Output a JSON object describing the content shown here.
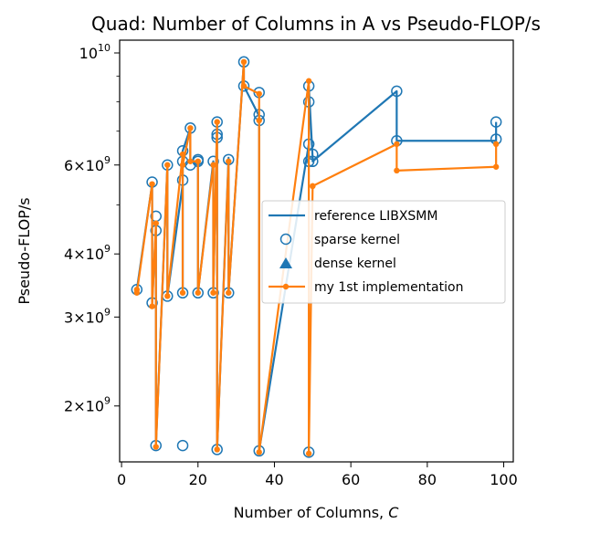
{
  "chart_data": {
    "type": "line",
    "title": "Quad: Number of Columns in A vs Pseudo-FLOP/s",
    "xlabel": "Number of Columns, C",
    "xlabel_main": "Number of Columns, ",
    "xlabel_var": "C",
    "ylabel": "Pseudo-FLOP/s",
    "xlim": [
      -0.5,
      102.5
    ],
    "ylim": [
      1550000000.0,
      10600000000.0
    ],
    "yscale": "log",
    "x_ticks": [
      0,
      20,
      40,
      60,
      80,
      100
    ],
    "x_tick_labels": [
      "0",
      "20",
      "40",
      "60",
      "80",
      "100"
    ],
    "y_ticks": [
      {
        "value": 10000000000.0,
        "base": "10",
        "exp": "10",
        "coef": ""
      },
      {
        "value": 6000000000.0,
        "base": "10",
        "exp": "9",
        "coef": "6"
      },
      {
        "value": 4000000000.0,
        "base": "10",
        "exp": "9",
        "coef": "4"
      },
      {
        "value": 3000000000.0,
        "base": "10",
        "exp": "9",
        "coef": "3"
      },
      {
        "value": 2000000000.0,
        "base": "10",
        "exp": "9",
        "coef": "2"
      }
    ],
    "y_minor_ticks": [
      5000000000.0,
      7000000000.0,
      8000000000.0,
      9000000000.0
    ],
    "legend_position": "center-right",
    "series": [
      {
        "name": "reference LIBXSMM",
        "color": "#1f77b4",
        "style": "line",
        "x": [
          4,
          4,
          8,
          8,
          9,
          9,
          12,
          12,
          16,
          16,
          16,
          18,
          18,
          20,
          20,
          24,
          24,
          25,
          25,
          28,
          28,
          32,
          32,
          36,
          36,
          49,
          49,
          50,
          50,
          72,
          72,
          98,
          98
        ],
        "values": [
          3400000000.0,
          3400000000.0,
          5500000000.0,
          3200000000.0,
          4500000000.0,
          1670000000.0,
          6000000000.0,
          3300000000.0,
          5500000000.0,
          3350000000.0,
          6400000000.0,
          7100000000.0,
          6100000000.0,
          6100000000.0,
          3350000000.0,
          6100000000.0,
          3350000000.0,
          7300000000.0,
          1640000000.0,
          6200000000.0,
          3350000000.0,
          9600000000.0,
          8600000000.0,
          7500000000.0,
          1630000000.0,
          6600000000.0,
          8600000000.0,
          6200000000.0,
          6100000000.0,
          8400000000.0,
          6700000000.0,
          6700000000.0,
          7300000000.0
        ]
      },
      {
        "name": "sparse kernel",
        "color": "#1f77b4",
        "style": "open-circle",
        "x": [
          4,
          8,
          8,
          9,
          9,
          9,
          12,
          12,
          16,
          16,
          16,
          16,
          16,
          18,
          18,
          20,
          20,
          20,
          24,
          24,
          25,
          25,
          25,
          25,
          28,
          28,
          32,
          32,
          36,
          36,
          36,
          36,
          49,
          49,
          49,
          49,
          49,
          50,
          50,
          72,
          72,
          98,
          98
        ],
        "values": [
          3400000000.0,
          5550000000.0,
          3200000000.0,
          4750000000.0,
          4450000000.0,
          1670000000.0,
          6000000000.0,
          3300000000.0,
          6400000000.0,
          6100000000.0,
          5600000000.0,
          3350000000.0,
          1670000000.0,
          7100000000.0,
          6000000000.0,
          6150000000.0,
          6100000000.0,
          3350000000.0,
          6100000000.0,
          3350000000.0,
          7300000000.0,
          6900000000.0,
          6800000000.0,
          1640000000.0,
          6150000000.0,
          3350000000.0,
          9600000000.0,
          8600000000.0,
          8350000000.0,
          7550000000.0,
          7350000000.0,
          1630000000.0,
          8600000000.0,
          8000000000.0,
          6600000000.0,
          6100000000.0,
          1620000000.0,
          6300000000.0,
          6100000000.0,
          8400000000.0,
          6700000000.0,
          7300000000.0,
          6750000000.0
        ]
      },
      {
        "name": "dense kernel",
        "color": "#1f77b4",
        "style": "triangle",
        "x": [],
        "values": []
      },
      {
        "name": "my 1st implementation",
        "color": "#ff7f0e",
        "style": "line-dot",
        "x": [
          4,
          4,
          8,
          8,
          9,
          9,
          12,
          12,
          16,
          16,
          16,
          18,
          18,
          20,
          20,
          24,
          24,
          25,
          25,
          28,
          28,
          32,
          32,
          36,
          36,
          36,
          49,
          49,
          50,
          50,
          72,
          72,
          98,
          98
        ],
        "values": [
          3400000000.0,
          3350000000.0,
          5500000000.0,
          3150000000.0,
          4600000000.0,
          1660000000.0,
          6000000000.0,
          3300000000.0,
          6300000000.0,
          3350000000.0,
          6000000000.0,
          7100000000.0,
          6100000000.0,
          6100000000.0,
          3350000000.0,
          6000000000.0,
          3350000000.0,
          7300000000.0,
          1640000000.0,
          6100000000.0,
          3350000000.0,
          9600000000.0,
          8600000000.0,
          8300000000.0,
          7350000000.0,
          1620000000.0,
          8800000000.0,
          1610000000.0,
          5450000000.0,
          5450000000.0,
          6600000000.0,
          5850000000.0,
          5950000000.0,
          6600000000.0
        ]
      }
    ]
  }
}
